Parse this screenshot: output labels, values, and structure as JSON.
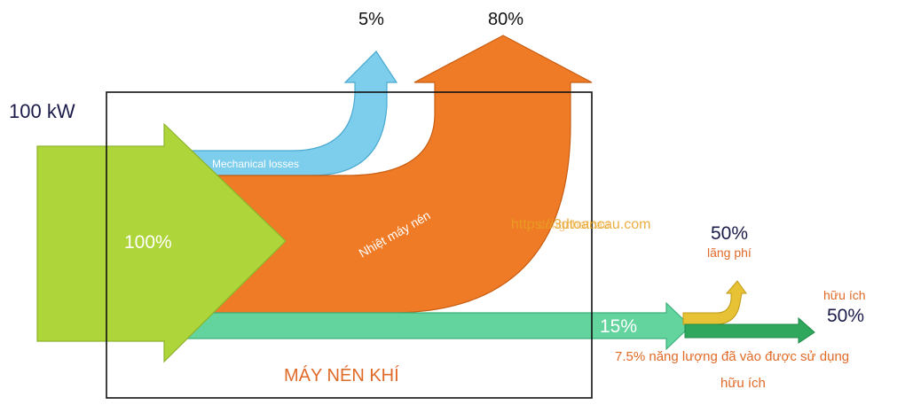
{
  "input": {
    "power": "100 kW",
    "percent": "100%"
  },
  "flows": {
    "mechanical": {
      "label": "Mechanical losses",
      "percent": "5%"
    },
    "heat": {
      "label": "Nhiệt máy nén",
      "percent": "80%"
    },
    "useful_stream": {
      "percent": "15%"
    }
  },
  "outputs": {
    "waste": {
      "percent": "50%",
      "label": "lãng phí"
    },
    "useful": {
      "percent": "50%",
      "label": "hữu ích"
    }
  },
  "box_label": "MÁY NÉN KHÍ",
  "note_line1": "7.5% năng lượng đã vào được sử dụng",
  "note_line2": "hữu ích",
  "watermark_front": "https://3dtoancau.com",
  "watermark_back": "dongnhatcau",
  "colors": {
    "input": "#aed53a",
    "input_stroke": "#8cb32a",
    "mechanical": "#7dcdec",
    "mechanical_stroke": "#4aa9d0",
    "heat": "#ef7b26",
    "heat_stroke": "#c85d12",
    "useful_stream": "#63d49e",
    "useful_stroke": "#3fb07c",
    "waste": "#e7c235",
    "useful_out": "#2fa85e",
    "orange_text": "#e06a28",
    "navy_text": "#1b1b4a",
    "watermark": "#e8a020"
  }
}
